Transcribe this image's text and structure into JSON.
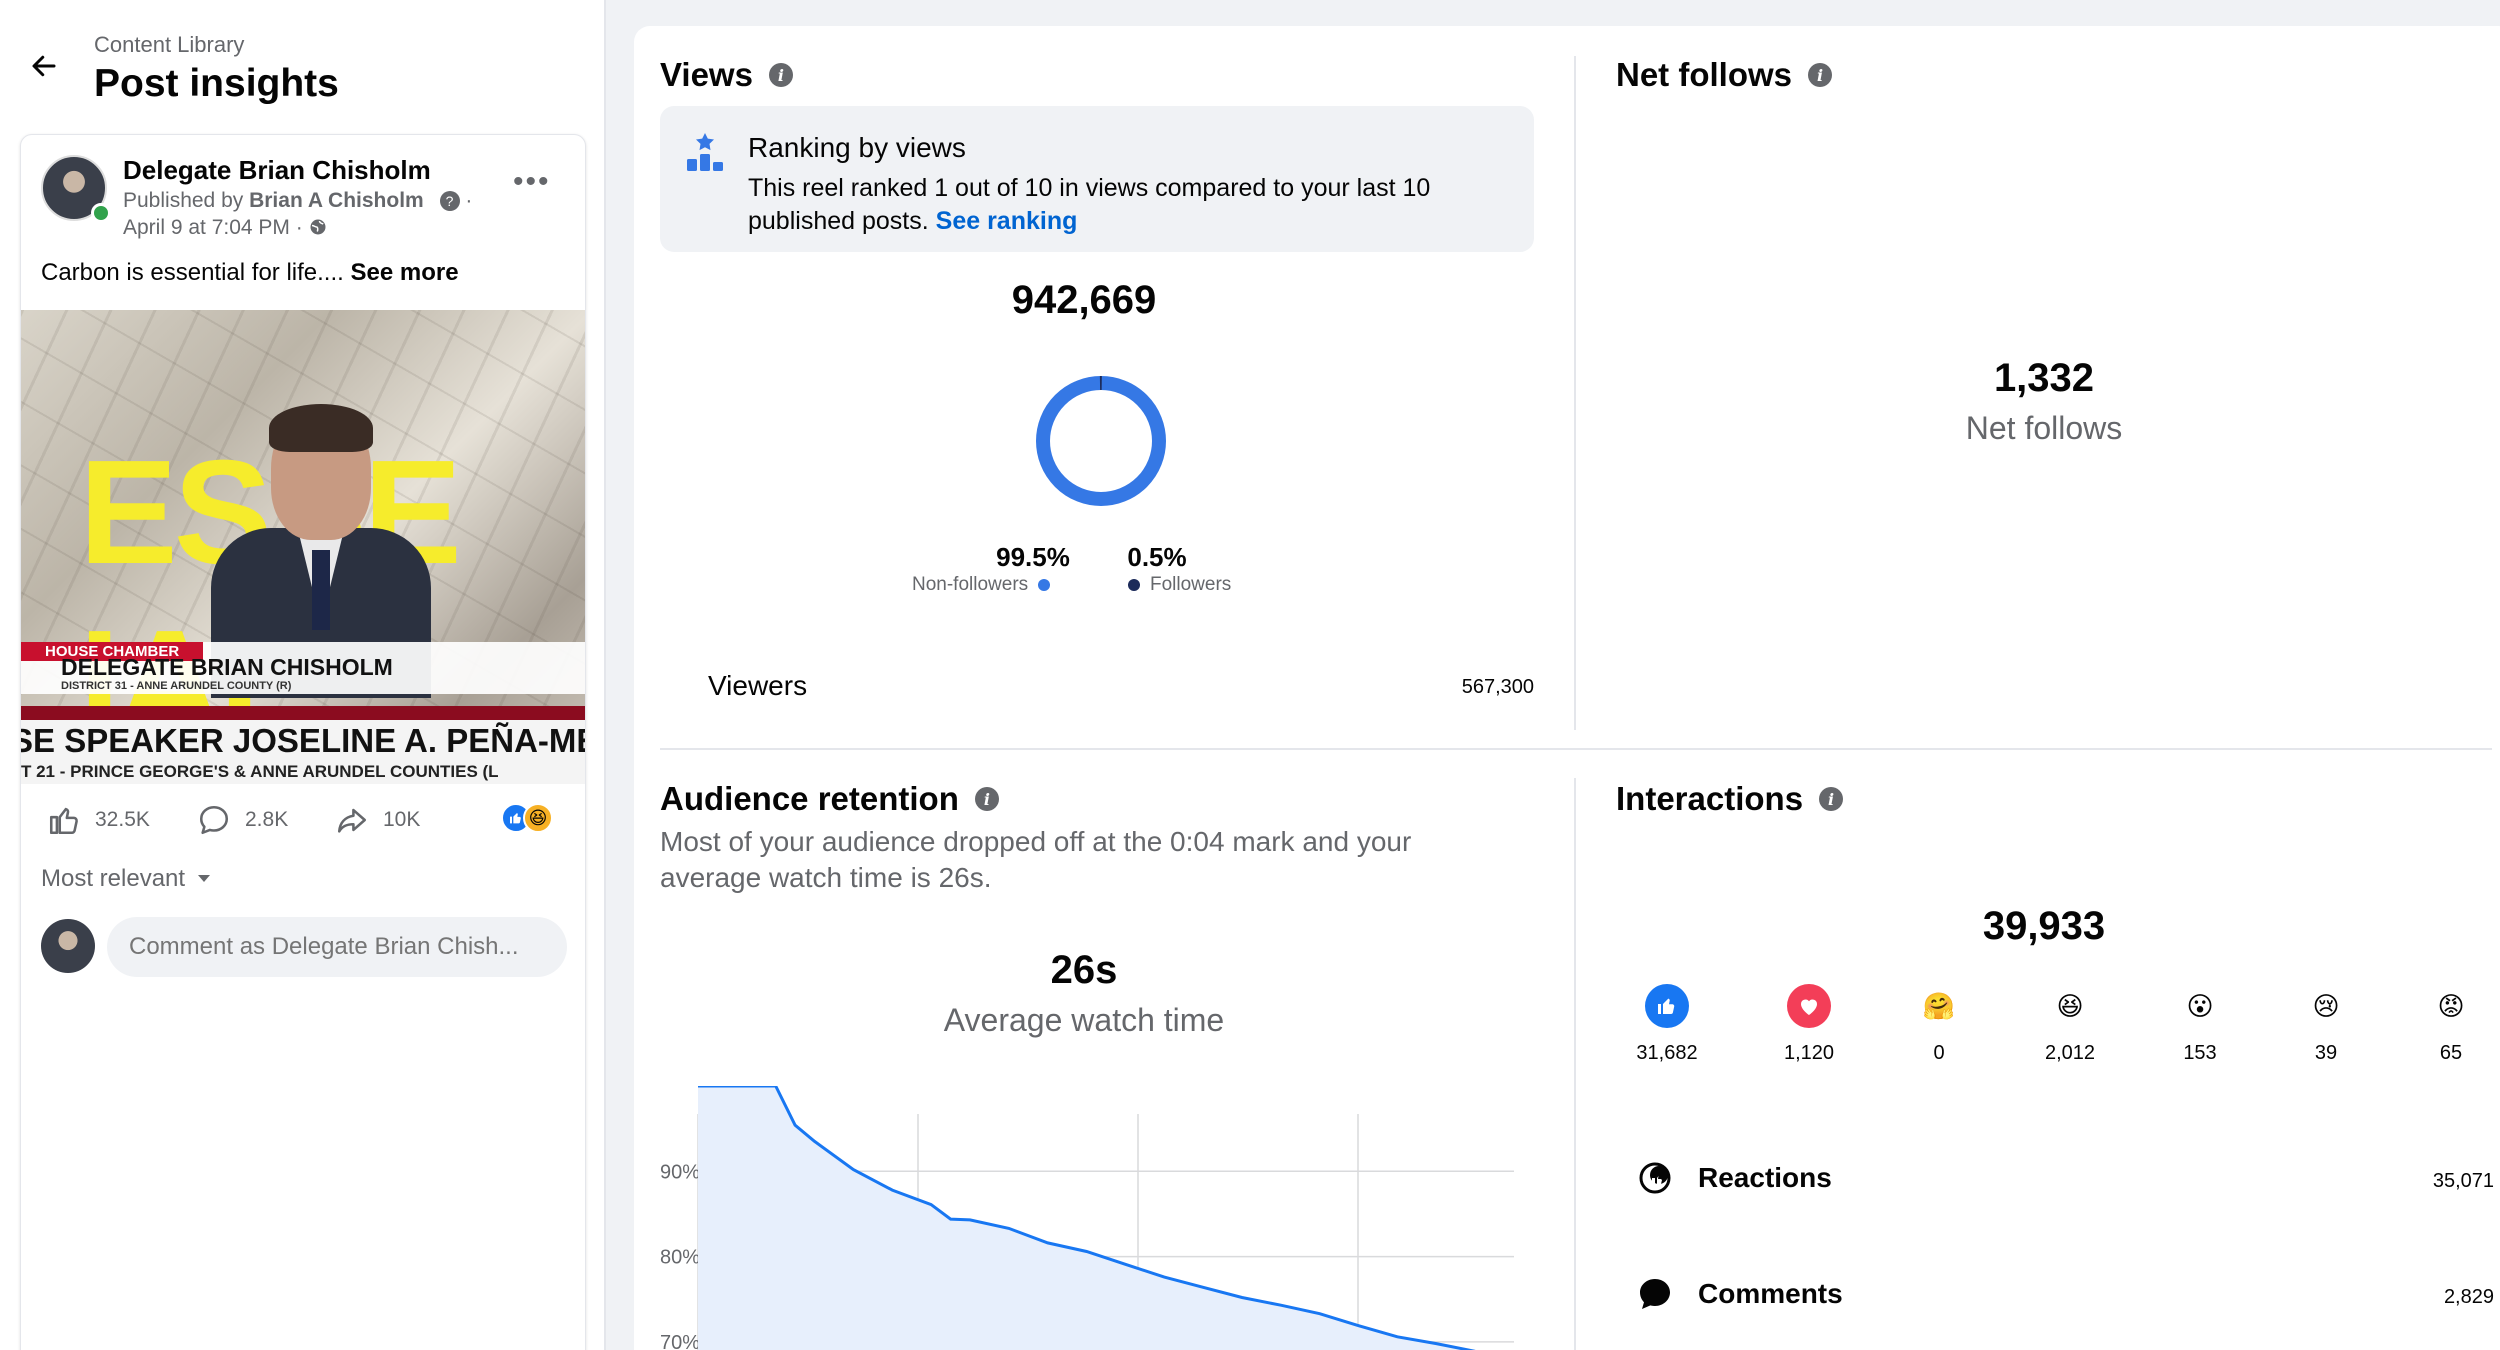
{
  "header": {
    "breadcrumb": "Content Library",
    "title": "Post insights"
  },
  "post": {
    "author": "Delegate Brian Chisholm",
    "published_prefix": "Published by",
    "publisher": "Brian A Chisholm",
    "time": "April 9 at 7:04 PM",
    "text": "Carbon is essential for life....",
    "see_more": "See more",
    "video": {
      "headline": "ESSE  IAL",
      "chamber_tag": "HOUSE CHAMBER",
      "name": "DELEGATE BRIAN CHISHOLM",
      "district": "DISTRICT 31 - ANNE ARUNDEL COUNTY (R)",
      "name2": "SE SPEAKER JOSELINE A. PEÑA-MELNY",
      "district2": "T 21 - PRINCE GEORGE'S & ANNE ARUNDEL COUNTIES (L"
    },
    "stats": {
      "likes": "32.5K",
      "comments": "2.8K",
      "shares": "10K"
    },
    "sort_label": "Most relevant",
    "comment_placeholder": "Comment as Delegate Brian Chish..."
  },
  "views": {
    "title": "Views",
    "ranking_title": "Ranking by views",
    "ranking_desc": "This reel ranked 1 out of 10 in views compared to your last 10 published posts.",
    "see_ranking": "See ranking",
    "total": "942,669",
    "non_followers_pct": "99.5%",
    "non_followers_label": "Non-followers",
    "followers_pct": "0.5%",
    "followers_label": "Followers",
    "viewers_label": "Viewers",
    "viewers_value": "567,300",
    "colors": {
      "non_followers": "#3578e5",
      "followers": "#1c2b5a"
    }
  },
  "net_follows": {
    "title": "Net follows",
    "value": "1,332",
    "label": "Net follows"
  },
  "retention": {
    "title": "Audience retention",
    "description": "Most of your audience dropped off at the 0:04 mark and your average watch time is 26s.",
    "avg_value": "26s",
    "avg_label": "Average watch time"
  },
  "chart_data": {
    "type": "area",
    "title": "",
    "xlabel": "",
    "ylabel": "",
    "y_ticks": [
      "90%",
      "80%",
      "70%"
    ],
    "ylim": [
      66,
      100
    ],
    "x": [
      0,
      2,
      4,
      5,
      6,
      8,
      10,
      12,
      13,
      14,
      16,
      18,
      20,
      22,
      24,
      26,
      28,
      30,
      32,
      34,
      36,
      38,
      40,
      42
    ],
    "values": [
      100,
      100,
      100,
      95.4,
      93.5,
      90.2,
      87.8,
      86.1,
      84.4,
      84.3,
      83.3,
      81.6,
      80.6,
      79.1,
      77.6,
      76.4,
      75.2,
      74.3,
      73.3,
      71.9,
      70.6,
      69.8,
      68.9,
      68.1
    ],
    "color": "#1877f2",
    "grid": true
  },
  "interactions": {
    "title": "Interactions",
    "total": "39,933",
    "reactions": [
      {
        "name": "like-icon",
        "count": "31,682",
        "color": "#1877f2"
      },
      {
        "name": "love-icon",
        "count": "1,120",
        "color": "#f33e58"
      },
      {
        "name": "care-icon",
        "count": "0",
        "color": "#f7b125"
      },
      {
        "name": "haha-icon",
        "count": "2,012",
        "color": "#f7b125"
      },
      {
        "name": "wow-icon",
        "count": "153",
        "color": "#f7b125"
      },
      {
        "name": "sad-icon",
        "count": "39",
        "color": "#f7b125"
      },
      {
        "name": "angry-icon",
        "count": "65",
        "color": "#e9710f"
      }
    ],
    "rows": [
      {
        "label": "Reactions",
        "value": "35,071"
      },
      {
        "label": "Comments",
        "value": "2,829"
      }
    ]
  }
}
